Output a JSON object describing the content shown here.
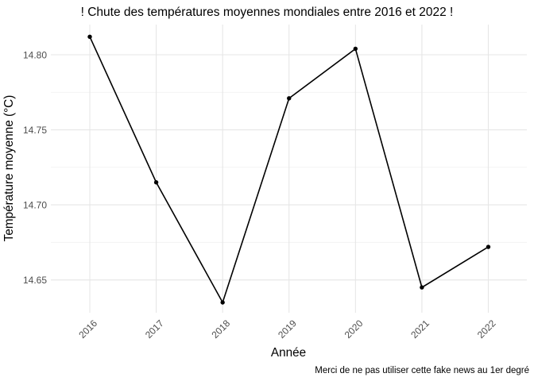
{
  "chart_data": {
    "type": "line",
    "title": "! Chute des températures moyennes mondiales entre 2016 et 2022 !",
    "xlabel": "Année",
    "ylabel": "Température moyenne (°C)",
    "caption": "Merci de ne pas utiliser cette fake news au 1er degré",
    "x": [
      2016,
      2017,
      2018,
      2019,
      2020,
      2021,
      2022
    ],
    "values": [
      14.812,
      14.715,
      14.635,
      14.771,
      14.804,
      14.645,
      14.672
    ],
    "xtick_labels": [
      "2016",
      "2017",
      "2018",
      "2019",
      "2020",
      "2021",
      "2022"
    ],
    "yticks": [
      14.8,
      14.75,
      14.7,
      14.65
    ],
    "ytick_labels": [
      "14.80",
      "14.75",
      "14.70",
      "14.65"
    ],
    "minor_yticks": [
      14.775,
      14.725,
      14.675
    ],
    "ylim": [
      14.626,
      14.82
    ],
    "xlim": [
      2015.4,
      2022.6
    ],
    "grid": "major-and-minor-horizontal, major-vertical-at-years",
    "legend_position": "none",
    "colors": {
      "line": "#000000",
      "point": "#000000",
      "grid_major": "#e6e6e6",
      "grid_minor": "#f2f2f2",
      "tick_text": "#4d4d4d",
      "title_text": "#000000",
      "background": "#ffffff"
    }
  }
}
